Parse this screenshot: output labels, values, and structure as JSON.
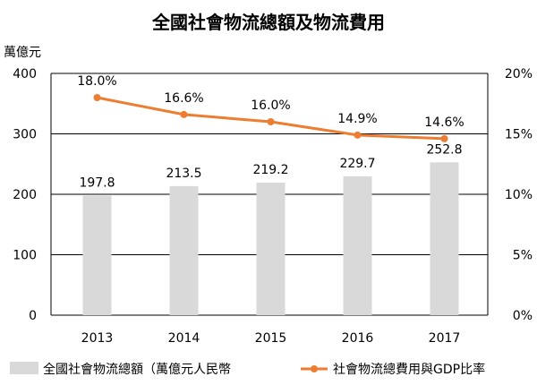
{
  "chart_data": {
    "type": "bar",
    "title": "全國社會物流總額及物流費用",
    "y_unit_label": "萬億元",
    "categories": [
      "2013",
      "2014",
      "2015",
      "2016",
      "2017"
    ],
    "series": [
      {
        "name": "全國社會物流總額（萬億元人民幣",
        "type": "bar",
        "axis": "left",
        "color": "#d9d9d9",
        "values": [
          197.8,
          213.5,
          219.2,
          229.7,
          252.8
        ],
        "labels": [
          "197.8",
          "213.5",
          "219.2",
          "229.7",
          "252.8"
        ]
      },
      {
        "name": "社會物流總費用與GDP比率",
        "type": "line",
        "axis": "right",
        "color": "#ed7d31",
        "values": [
          18.0,
          16.6,
          16.0,
          14.9,
          14.6
        ],
        "labels": [
          "18.0%",
          "16.6%",
          "16.0%",
          "14.9%",
          "14.6%"
        ]
      }
    ],
    "y_left": {
      "min": 0,
      "max": 400,
      "ticks": [
        0,
        100,
        200,
        300,
        400
      ],
      "tick_labels": [
        "0",
        "100",
        "200",
        "300",
        "400"
      ]
    },
    "y_right": {
      "min": 0,
      "max": 20,
      "ticks": [
        0,
        5,
        10,
        15,
        20
      ],
      "tick_labels": [
        "0%",
        "5%",
        "10%",
        "15%",
        "20%"
      ]
    },
    "grid": true,
    "legend_position": "bottom"
  }
}
